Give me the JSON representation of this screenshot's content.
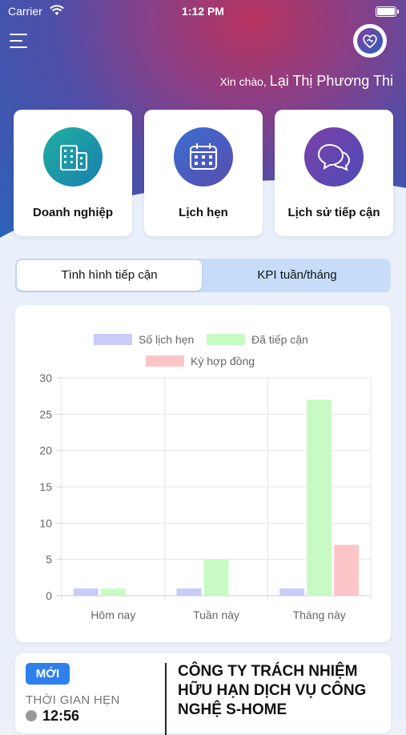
{
  "status_bar": {
    "carrier": "Carrier",
    "time": "1:12 PM"
  },
  "header": {
    "greeting_prefix": "Xin chào,",
    "user_name": "Lại Thị Phương Thi"
  },
  "menu_icon": "hamburger-icon",
  "avatar_icon": "heart-handshake-icon",
  "quick_actions": [
    {
      "label": "Doanh nghiệp",
      "icon": "building-icon",
      "color": "#1a9aa5"
    },
    {
      "label": "Lịch hẹn",
      "icon": "calendar-icon",
      "color": "#2d5fb5"
    },
    {
      "label": "Lịch sử tiếp cận",
      "icon": "chat-bubbles-icon",
      "color": "#6a3c9e"
    }
  ],
  "tabs": [
    {
      "label": "Tình hình tiếp cận",
      "active": true
    },
    {
      "label": "KPI tuần/tháng",
      "active": false
    }
  ],
  "chart_data": {
    "type": "bar",
    "categories": [
      "Hôm nay",
      "Tuần này",
      "Tháng này"
    ],
    "series": [
      {
        "name": "Số lịch hẹn",
        "values": [
          1,
          1,
          1
        ],
        "color": "#c9cbf9"
      },
      {
        "name": "Đã tiếp cận",
        "values": [
          1,
          5,
          27
        ],
        "color": "#c8fbc4"
      },
      {
        "name": "Ký hợp đồng",
        "values": [
          0,
          0,
          7
        ],
        "color": "#fcc6c8"
      }
    ],
    "ylim": [
      0,
      30
    ],
    "yticks": [
      "0",
      "5",
      "10",
      "15",
      "20",
      "25",
      "30"
    ],
    "grid": true,
    "legend": "top"
  },
  "appointment": {
    "badge": "MỚI",
    "time_label": "THỜI GIAN HẸN",
    "time_value": "12:56",
    "company_name": "CÔNG TY TRÁCH NHIỆM HỮU HẠN DỊCH VỤ CÔNG NGHỆ S-HOME"
  }
}
